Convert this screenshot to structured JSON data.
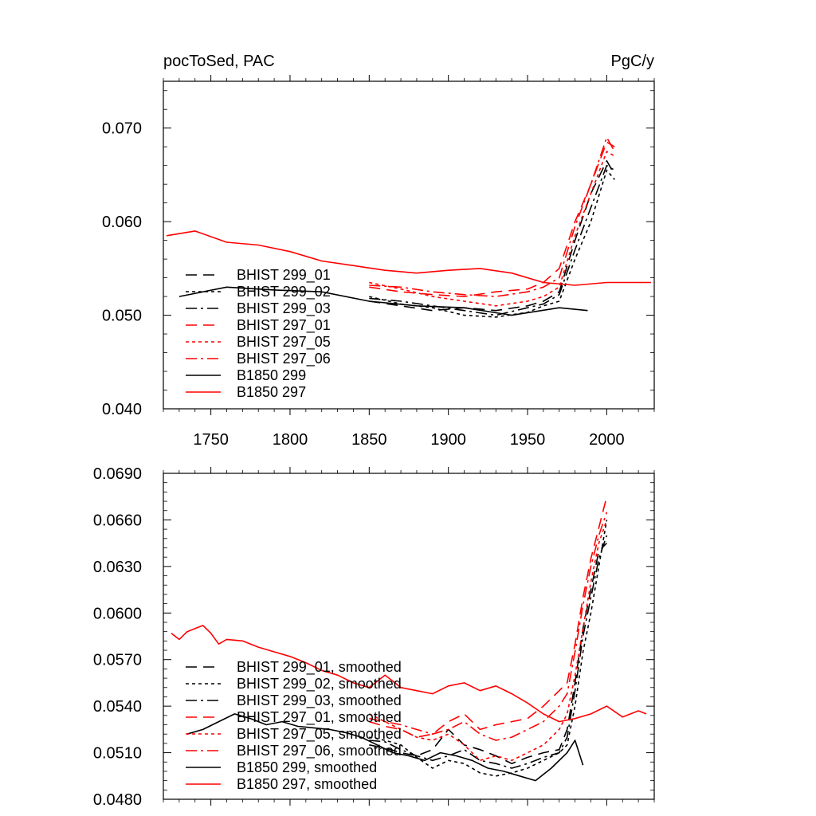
{
  "chart_data": [
    {
      "type": "line",
      "title_left": "pocToSed, PAC",
      "title_right": "PgC/y",
      "xlim": [
        1720,
        2030
      ],
      "ylim": [
        0.04,
        0.075
      ],
      "x_ticks": [
        1750,
        1800,
        1850,
        1900,
        1950,
        2000
      ],
      "x_tick_labels": [
        "1750",
        "1800",
        "1850",
        "1900",
        "1950",
        "2000"
      ],
      "y_ticks": [
        0.04,
        0.05,
        0.06,
        0.07
      ],
      "y_tick_labels": [
        "0.040",
        "0.050",
        "0.060",
        "0.070"
      ],
      "legend_placement": "bottom-left",
      "series": [
        {
          "name": "BHIST 299_01",
          "color": "#000000",
          "dash": "14,8",
          "x": [
            1850,
            1870,
            1890,
            1910,
            1930,
            1950,
            1960,
            1970,
            1980,
            1990,
            2000,
            2005
          ],
          "y": [
            0.0515,
            0.051,
            0.0505,
            0.0508,
            0.0505,
            0.051,
            0.0515,
            0.0525,
            0.058,
            0.063,
            0.0665,
            0.065
          ]
        },
        {
          "name": "BHIST 299_02",
          "color": "#000000",
          "dash": "4,4",
          "x": [
            1850,
            1870,
            1890,
            1910,
            1930,
            1950,
            1960,
            1970,
            1980,
            1990,
            2000,
            2005
          ],
          "y": [
            0.052,
            0.0512,
            0.0508,
            0.05,
            0.0498,
            0.0503,
            0.051,
            0.0515,
            0.056,
            0.06,
            0.0655,
            0.0645
          ]
        },
        {
          "name": "BHIST 299_03",
          "color": "#000000",
          "dash": "14,5,3,5",
          "x": [
            1850,
            1870,
            1890,
            1910,
            1930,
            1950,
            1960,
            1970,
            1980,
            1990,
            2000,
            2005
          ],
          "y": [
            0.0518,
            0.0515,
            0.051,
            0.0505,
            0.05,
            0.0508,
            0.0512,
            0.0522,
            0.057,
            0.0615,
            0.066,
            0.0655
          ]
        },
        {
          "name": "BHIST 297_01",
          "color": "#ff0000",
          "dash": "14,8",
          "x": [
            1850,
            1870,
            1890,
            1910,
            1930,
            1950,
            1960,
            1970,
            1980,
            1990,
            2000,
            2005
          ],
          "y": [
            0.053,
            0.0525,
            0.0522,
            0.052,
            0.0525,
            0.0528,
            0.0535,
            0.055,
            0.06,
            0.064,
            0.0685,
            0.068
          ]
        },
        {
          "name": "BHIST 297_05",
          "color": "#ff0000",
          "dash": "4,4",
          "x": [
            1850,
            1870,
            1890,
            1910,
            1930,
            1950,
            1960,
            1970,
            1980,
            1990,
            2000,
            2005
          ],
          "y": [
            0.0535,
            0.0528,
            0.052,
            0.0515,
            0.051,
            0.0515,
            0.052,
            0.053,
            0.0585,
            0.063,
            0.0675,
            0.067
          ]
        },
        {
          "name": "BHIST 297_06",
          "color": "#ff0000",
          "dash": "14,5,3,5",
          "x": [
            1850,
            1870,
            1890,
            1910,
            1930,
            1950,
            1960,
            1970,
            1980,
            1990,
            2000,
            2005
          ],
          "y": [
            0.0532,
            0.053,
            0.0525,
            0.0522,
            0.052,
            0.0525,
            0.053,
            0.054,
            0.0595,
            0.064,
            0.069,
            0.0675
          ]
        },
        {
          "name": "B1850 299",
          "color": "#000000",
          "dash": "",
          "x": [
            1730,
            1760,
            1790,
            1820,
            1850,
            1880,
            1910,
            1940,
            1970,
            1988
          ],
          "y": [
            0.052,
            0.053,
            0.0527,
            0.0525,
            0.0515,
            0.051,
            0.0508,
            0.05,
            0.0508,
            0.0505
          ]
        },
        {
          "name": "B1850 297",
          "color": "#ff0000",
          "dash": "",
          "x": [
            1722,
            1740,
            1760,
            1780,
            1800,
            1820,
            1840,
            1860,
            1880,
            1900,
            1920,
            1940,
            1960,
            1980,
            2000,
            2020,
            2028
          ],
          "y": [
            0.0585,
            0.059,
            0.0578,
            0.0575,
            0.0568,
            0.0558,
            0.0553,
            0.0548,
            0.0545,
            0.0548,
            0.055,
            0.0545,
            0.0535,
            0.0532,
            0.0535,
            0.0535,
            0.0535
          ]
        }
      ]
    },
    {
      "type": "line",
      "xlim": [
        1720,
        2030
      ],
      "ylim": [
        0.048,
        0.069
      ],
      "x_ticks": [
        1750,
        1800,
        1850,
        1900,
        1950,
        2000
      ],
      "y_ticks": [
        0.048,
        0.051,
        0.054,
        0.057,
        0.06,
        0.063,
        0.066,
        0.069
      ],
      "y_tick_labels": [
        "0.0480",
        "0.0510",
        "0.0540",
        "0.0570",
        "0.0600",
        "0.0630",
        "0.0660",
        "0.0690"
      ],
      "legend_placement": "bottom-left",
      "series": [
        {
          "name": "BHIST 299_01, smoothed",
          "color": "#000000",
          "dash": "14,8",
          "x": [
            1850,
            1860,
            1870,
            1880,
            1890,
            1900,
            1910,
            1920,
            1930,
            1940,
            1950,
            1960,
            1970,
            1975,
            1980,
            1985,
            1990,
            1995,
            2000
          ],
          "y": [
            0.0515,
            0.0513,
            0.051,
            0.0508,
            0.0512,
            0.0525,
            0.0515,
            0.0512,
            0.0508,
            0.0503,
            0.0507,
            0.051,
            0.0512,
            0.0525,
            0.0555,
            0.059,
            0.0615,
            0.064,
            0.0645
          ]
        },
        {
          "name": "BHIST 299_02, smoothed",
          "color": "#000000",
          "dash": "4,4",
          "x": [
            1850,
            1860,
            1870,
            1880,
            1890,
            1900,
            1910,
            1920,
            1930,
            1940,
            1950,
            1960,
            1970,
            1975,
            1980,
            1985,
            1990,
            1995,
            2000
          ],
          "y": [
            0.052,
            0.0518,
            0.0515,
            0.0507,
            0.05,
            0.0505,
            0.0503,
            0.0497,
            0.0495,
            0.0497,
            0.05,
            0.0505,
            0.051,
            0.0515,
            0.054,
            0.0575,
            0.06,
            0.063,
            0.066
          ]
        },
        {
          "name": "BHIST 299_03, smoothed",
          "color": "#000000",
          "dash": "14,5,3,5",
          "x": [
            1850,
            1860,
            1870,
            1880,
            1890,
            1900,
            1910,
            1920,
            1930,
            1940,
            1950,
            1960,
            1970,
            1975,
            1980,
            1985,
            1990,
            1995,
            2000
          ],
          "y": [
            0.0518,
            0.0517,
            0.0512,
            0.0508,
            0.0505,
            0.0508,
            0.0512,
            0.0505,
            0.0503,
            0.05,
            0.0503,
            0.0507,
            0.051,
            0.052,
            0.055,
            0.0585,
            0.061,
            0.0635,
            0.065
          ]
        },
        {
          "name": "BHIST 297_01, smoothed",
          "color": "#ff0000",
          "dash": "14,8",
          "x": [
            1850,
            1860,
            1870,
            1880,
            1890,
            1900,
            1910,
            1920,
            1930,
            1940,
            1950,
            1960,
            1970,
            1975,
            1980,
            1985,
            1990,
            1995,
            2000
          ],
          "y": [
            0.053,
            0.0527,
            0.0525,
            0.052,
            0.0522,
            0.053,
            0.0535,
            0.0525,
            0.0528,
            0.053,
            0.0532,
            0.054,
            0.055,
            0.0555,
            0.058,
            0.061,
            0.0635,
            0.0655,
            0.0675
          ]
        },
        {
          "name": "BHIST 297_05, smoothed",
          "color": "#ff0000",
          "dash": "4,4",
          "x": [
            1850,
            1860,
            1870,
            1880,
            1890,
            1900,
            1910,
            1920,
            1930,
            1940,
            1950,
            1960,
            1970,
            1975,
            1980,
            1985,
            1990,
            1995,
            2000
          ],
          "y": [
            0.0535,
            0.053,
            0.0525,
            0.052,
            0.0518,
            0.0522,
            0.0515,
            0.0505,
            0.0508,
            0.0505,
            0.051,
            0.0515,
            0.0525,
            0.0535,
            0.056,
            0.059,
            0.062,
            0.0645,
            0.066
          ]
        },
        {
          "name": "BHIST 297_06, smoothed",
          "color": "#ff0000",
          "dash": "14,5,3,5",
          "x": [
            1850,
            1860,
            1870,
            1880,
            1890,
            1900,
            1910,
            1920,
            1930,
            1940,
            1950,
            1960,
            1970,
            1975,
            1980,
            1985,
            1990,
            1995,
            2000
          ],
          "y": [
            0.0532,
            0.053,
            0.0528,
            0.0525,
            0.0522,
            0.0525,
            0.053,
            0.0522,
            0.0518,
            0.052,
            0.0525,
            0.053,
            0.054,
            0.0548,
            0.0575,
            0.0605,
            0.063,
            0.065,
            0.0665
          ]
        },
        {
          "name": "B1850 299, smoothed",
          "color": "#000000",
          "dash": "",
          "x": [
            1735,
            1745,
            1755,
            1765,
            1775,
            1785,
            1795,
            1805,
            1815,
            1825,
            1835,
            1845,
            1855,
            1865,
            1875,
            1885,
            1895,
            1905,
            1915,
            1925,
            1935,
            1945,
            1955,
            1965,
            1975,
            1980,
            1985
          ],
          "y": [
            0.0522,
            0.0525,
            0.053,
            0.0535,
            0.0532,
            0.0528,
            0.053,
            0.0527,
            0.0526,
            0.0525,
            0.0523,
            0.052,
            0.0515,
            0.051,
            0.0508,
            0.0505,
            0.051,
            0.0508,
            0.0505,
            0.05,
            0.0498,
            0.0495,
            0.0492,
            0.05,
            0.051,
            0.0518,
            0.0502
          ]
        },
        {
          "name": "B1850 297, smoothed",
          "color": "#ff0000",
          "dash": "",
          "x": [
            1725,
            1730,
            1735,
            1740,
            1745,
            1750,
            1755,
            1760,
            1770,
            1780,
            1790,
            1800,
            1810,
            1820,
            1830,
            1840,
            1850,
            1860,
            1870,
            1880,
            1890,
            1900,
            1910,
            1920,
            1930,
            1940,
            1950,
            1960,
            1970,
            1980,
            1990,
            2000,
            2010,
            2020,
            2025
          ],
          "y": [
            0.0587,
            0.0583,
            0.0588,
            0.059,
            0.0592,
            0.0587,
            0.058,
            0.0583,
            0.0582,
            0.0578,
            0.0575,
            0.0572,
            0.0568,
            0.0563,
            0.056,
            0.0555,
            0.0552,
            0.056,
            0.0552,
            0.055,
            0.0548,
            0.0553,
            0.0555,
            0.055,
            0.0553,
            0.0548,
            0.0542,
            0.0535,
            0.053,
            0.0532,
            0.0535,
            0.054,
            0.0533,
            0.0537,
            0.0535
          ]
        }
      ]
    }
  ]
}
